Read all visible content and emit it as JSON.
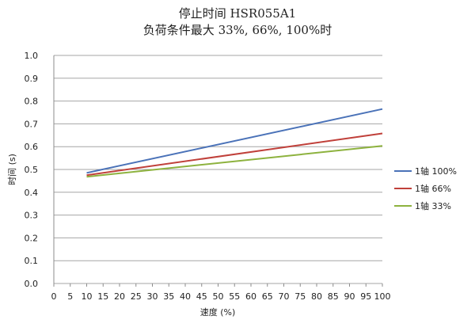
{
  "chart_data": {
    "type": "line",
    "title": "停止时间 HSR055A1",
    "subtitle": "负荷条件最大 33%, 66%, 100%时",
    "xlabel": "速度 (%)",
    "ylabel": "时间 (s)",
    "xlim": [
      0,
      100
    ],
    "ylim": [
      0.0,
      1.0
    ],
    "x_ticks": [
      0,
      5,
      10,
      15,
      20,
      25,
      30,
      35,
      40,
      45,
      50,
      55,
      60,
      65,
      70,
      75,
      80,
      85,
      90,
      95,
      100
    ],
    "y_ticks": [
      0.0,
      0.1,
      0.2,
      0.3,
      0.4,
      0.5,
      0.6,
      0.7,
      0.8,
      0.9,
      1.0
    ],
    "y_tick_labels": [
      "0.0",
      "0.1",
      "0.2",
      "0.3",
      "0.4",
      "0.5",
      "0.6",
      "0.7",
      "0.8",
      "0.9",
      "1.0"
    ],
    "grid": "horizontal",
    "legend_position": "right",
    "series": [
      {
        "name": "1轴  100%",
        "color": "#4a72b8",
        "x": [
          10,
          100
        ],
        "values": [
          0.485,
          0.765
        ]
      },
      {
        "name": "1轴  66%",
        "color": "#c0403a",
        "x": [
          10,
          100
        ],
        "values": [
          0.475,
          0.658
        ]
      },
      {
        "name": "1轴  33%",
        "color": "#8db23e",
        "x": [
          10,
          100
        ],
        "values": [
          0.468,
          0.603
        ]
      }
    ]
  }
}
